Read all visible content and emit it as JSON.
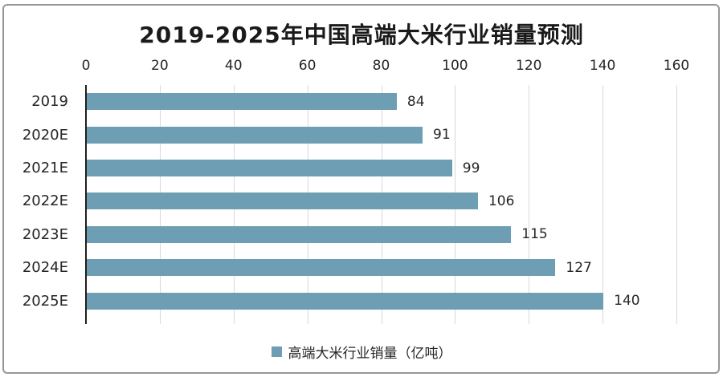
{
  "colors": {
    "bar": "#6D9EB3",
    "gridline": "#D9D9D9",
    "axis_line": "#1F1F1F",
    "frame_border": "#979797",
    "text": "#262626",
    "background": "#FFFFFF"
  },
  "chart_data": {
    "type": "bar",
    "orientation": "horizontal",
    "title": "2019-2025年中国高端大米行业销量预测",
    "categories": [
      "2019",
      "2020E",
      "2021E",
      "2022E",
      "2023E",
      "2024E",
      "2025E"
    ],
    "values": [
      84,
      91,
      99,
      106,
      115,
      127,
      140
    ],
    "series_name": "高端大米行业销量（亿吨）",
    "xlabel": "",
    "ylabel": "",
    "xlim": [
      0,
      160
    ],
    "xticks": [
      0,
      20,
      40,
      60,
      80,
      100,
      120,
      140,
      160
    ],
    "grid": true,
    "axis_position": "top",
    "legend_position": "bottom",
    "value_labels": true
  }
}
